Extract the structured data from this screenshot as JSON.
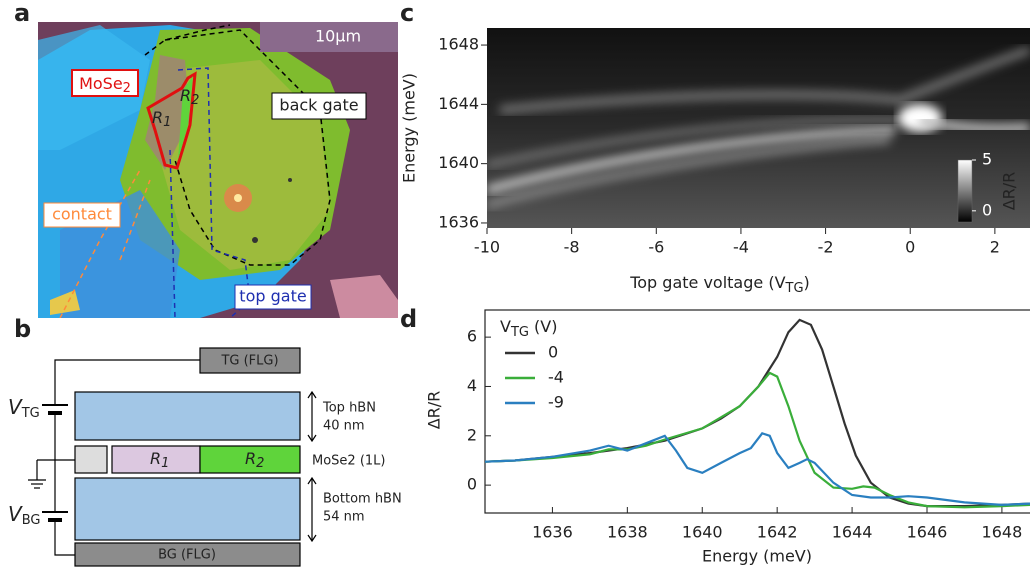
{
  "panel_a": {
    "label": "a",
    "scale_bar": "10μm",
    "material": {
      "text": "MoSe",
      "sub": "2"
    },
    "region_1": {
      "text": "R",
      "sub": "1"
    },
    "region_2": {
      "text": "R",
      "sub": "2"
    },
    "back_gate": "back gate",
    "contact": "contact",
    "top_gate": "top gate"
  },
  "panel_b": {
    "label": "b",
    "top_gate": "TG (FLG)",
    "v_top": {
      "text": "V",
      "sub": "TG"
    },
    "top_hbn": [
      "Top hBN",
      "40 nm"
    ],
    "region_1": {
      "text": "R",
      "sub": "1"
    },
    "region_2": {
      "text": "R",
      "sub": "2"
    },
    "monolayer": "MoSe2 (1L)",
    "v_bottom": {
      "text": "V",
      "sub": "BG"
    },
    "bottom_hbn": [
      "Bottom hBN",
      "54 nm"
    ],
    "bottom_gate": "BG (FLG)"
  },
  "chart_data": [
    {
      "type": "heatmap",
      "label": "c",
      "xlabel": [
        "Top gate voltage (V",
        "TG",
        ")"
      ],
      "ylabel": "Energy (meV)",
      "xlim": [
        -10,
        2.83
      ],
      "ylim": [
        1635.66,
        1649.15
      ],
      "xticks": [
        -10,
        -8,
        -6,
        -4,
        -2,
        0,
        2
      ],
      "yticks": [
        1636,
        1640,
        1644,
        1648
      ],
      "colorbar": {
        "label": "ΔR/R",
        "clim": [
          -1.1,
          5
        ],
        "ticks": [
          0,
          5
        ]
      }
    },
    {
      "type": "line",
      "label": "d",
      "xlabel": "Energy (meV)",
      "ylabel": "ΔR/R",
      "legend_title": [
        "V",
        "TG",
        " (V)"
      ],
      "xlim": [
        1634.2,
        1648.75
      ],
      "ylim": [
        -1.13,
        7.1
      ],
      "xticks": [
        1636,
        1638,
        1640,
        1642,
        1644,
        1646,
        1648
      ],
      "yticks": [
        0,
        2,
        4,
        6
      ],
      "series": [
        {
          "name": "0",
          "color": "#333333",
          "x": [
            1634.2,
            1635,
            1636,
            1637,
            1638,
            1639,
            1640,
            1640.5,
            1641,
            1641.5,
            1642,
            1642.3,
            1642.6,
            1642.9,
            1643.2,
            1643.5,
            1643.8,
            1644.1,
            1644.5,
            1645,
            1645.5,
            1646,
            1647,
            1648,
            1648.75
          ],
          "values": [
            0.95,
            1.0,
            1.15,
            1.3,
            1.5,
            1.8,
            2.3,
            2.7,
            3.2,
            4.0,
            5.2,
            6.2,
            6.7,
            6.5,
            5.5,
            4.0,
            2.5,
            1.2,
            0.1,
            -0.5,
            -0.75,
            -0.85,
            -0.85,
            -0.8,
            -0.75
          ]
        },
        {
          "name": "-4",
          "color": "#3aae3a",
          "x": [
            1634.2,
            1635,
            1636,
            1637,
            1637.5,
            1638,
            1638.5,
            1639,
            1640,
            1640.5,
            1641,
            1641.5,
            1641.8,
            1642,
            1642.3,
            1642.6,
            1643,
            1643.5,
            1644,
            1644.3,
            1644.6,
            1645,
            1645.5,
            1646,
            1647,
            1648,
            1648.75
          ],
          "values": [
            0.95,
            1.0,
            1.1,
            1.25,
            1.45,
            1.45,
            1.6,
            1.85,
            2.3,
            2.75,
            3.2,
            4.0,
            4.55,
            4.4,
            3.2,
            1.8,
            0.5,
            -0.1,
            -0.15,
            -0.05,
            -0.1,
            -0.4,
            -0.7,
            -0.85,
            -0.9,
            -0.85,
            -0.8
          ]
        },
        {
          "name": "-9",
          "color": "#2a7fc0",
          "x": [
            1634.2,
            1635,
            1636,
            1637,
            1637.5,
            1638,
            1638.5,
            1639,
            1639.3,
            1639.6,
            1640,
            1640.5,
            1641,
            1641.3,
            1641.6,
            1641.8,
            1642,
            1642.3,
            1642.6,
            1642.8,
            1643,
            1643.5,
            1644,
            1644.5,
            1645,
            1645.5,
            1646,
            1647,
            1648,
            1648.75
          ],
          "values": [
            0.95,
            1.0,
            1.15,
            1.4,
            1.6,
            1.4,
            1.7,
            2.0,
            1.4,
            0.7,
            0.5,
            0.9,
            1.3,
            1.5,
            2.1,
            2.0,
            1.3,
            0.7,
            0.9,
            1.05,
            0.9,
            0.1,
            -0.4,
            -0.5,
            -0.5,
            -0.45,
            -0.5,
            -0.7,
            -0.8,
            -0.75
          ]
        }
      ]
    }
  ]
}
